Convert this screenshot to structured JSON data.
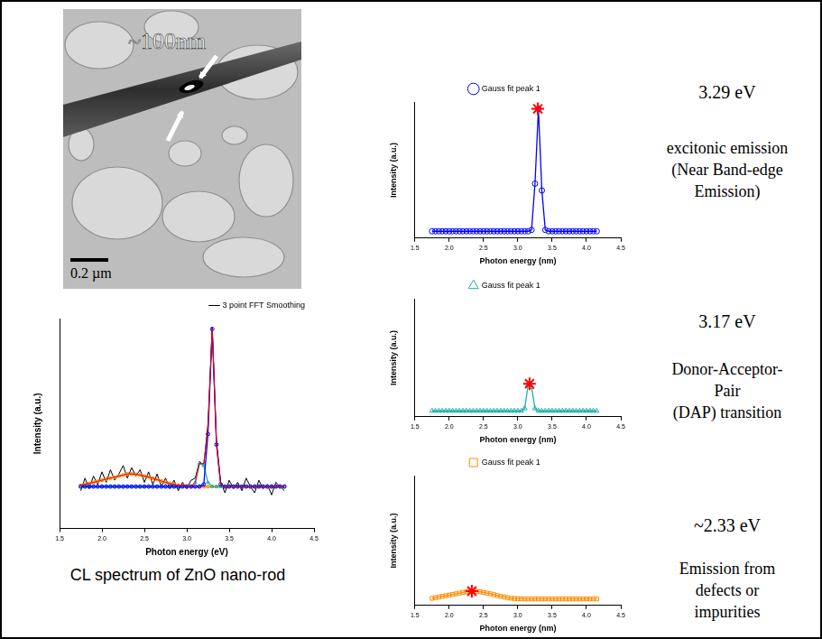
{
  "chart_data": [
    {
      "type": "line",
      "x_label": "Photon energy (eV)",
      "y_label": "Intensity (a.u.)",
      "xlim": [
        1.5,
        4.5
      ],
      "xticks": [
        1.5,
        {
          "value": 2,
          "label": "2.0"
        },
        2.5,
        {
          "value": 3,
          "label": "3.0"
        },
        3.5,
        {
          "value": 4,
          "label": "4.0"
        },
        4.5
      ],
      "ylim": [
        0,
        100
      ],
      "tick_labels": "x",
      "grid": false,
      "legend": "top right",
      "x": [
        1.75,
        1.8,
        1.85,
        1.9,
        1.95,
        2,
        2.05,
        2.1,
        2.15,
        2.2,
        2.25,
        2.3,
        2.35,
        2.4,
        2.45,
        2.5,
        2.55,
        2.6,
        2.65,
        2.7,
        2.75,
        2.8,
        2.85,
        2.9,
        2.95,
        3,
        3.05,
        3.1,
        3.15,
        3.2,
        3.25,
        3.3,
        3.35,
        3.4,
        3.45,
        3.5,
        3.55,
        3.6,
        3.65,
        3.7,
        3.75,
        3.8,
        3.85,
        3.9,
        3.95,
        4,
        4.05,
        4.1,
        4.15
      ],
      "series": [
        {
          "name": "3 point FFT Smoothing",
          "color": "#000000",
          "line_style": "solid",
          "values": [
            18,
            24,
            19,
            25,
            21,
            27,
            22,
            28,
            23,
            26,
            30,
            24,
            29,
            25,
            28,
            22,
            27,
            21,
            26,
            20,
            24,
            19,
            23,
            18,
            22,
            19,
            23,
            24,
            32,
            30,
            50,
            96,
            42,
            22,
            17,
            23,
            19,
            22,
            18,
            24,
            20,
            17,
            23,
            19,
            21,
            16,
            22,
            20,
            18
          ]
        },
        {
          "color": "#ff8c00",
          "marker": "square",
          "line_style": "solid",
          "values": [
            20.5,
            21,
            21.5,
            22,
            22.5,
            23,
            23.5,
            24,
            24.5,
            25,
            25.5,
            26,
            26,
            25.8,
            25.5,
            25,
            24.5,
            24,
            23.3,
            22.6,
            22,
            21.5,
            21,
            20.6,
            20.3,
            20.2,
            20.1,
            20,
            20,
            20,
            20,
            20,
            20,
            20,
            20,
            20,
            20,
            20,
            20,
            20,
            20,
            20,
            20,
            20,
            20,
            20,
            20,
            20,
            20
          ]
        },
        {
          "color": "#20b2aa",
          "marker": "triangle",
          "line_style": "solid",
          "values": [
            20,
            20,
            20,
            20,
            20,
            20,
            20,
            20,
            20,
            20,
            20,
            20,
            20,
            20,
            20,
            20,
            20,
            20,
            20,
            20,
            20,
            20,
            20,
            20,
            20,
            20,
            20,
            22,
            31,
            30,
            22,
            20,
            20,
            20,
            20,
            20,
            20,
            20,
            20,
            20,
            20,
            20,
            20,
            20,
            20,
            20,
            20,
            20,
            20
          ]
        },
        {
          "color": "#0000ff",
          "marker": "circle",
          "line_style": "solid",
          "values": [
            20,
            20,
            20,
            20,
            20,
            20,
            20,
            20,
            20,
            20,
            20,
            20,
            20,
            20,
            20,
            20,
            20,
            20,
            20,
            20,
            20,
            20,
            20,
            20,
            20,
            20,
            20,
            20,
            20,
            21,
            45,
            95,
            40,
            21,
            20,
            20,
            20,
            20,
            20,
            20,
            20,
            20,
            20,
            20,
            20,
            20,
            20,
            20,
            20
          ]
        },
        {
          "color": "#ff0000",
          "line_style": "solid",
          "values": [
            20.5,
            21,
            21.5,
            22,
            22.5,
            23,
            23.5,
            24,
            24.5,
            25,
            25.5,
            26,
            26,
            25.8,
            25.5,
            25,
            24.5,
            24,
            23.3,
            22.6,
            22,
            21.5,
            21,
            20.6,
            20.3,
            20.2,
            20.1,
            22,
            31,
            31,
            47,
            95,
            40,
            21,
            20,
            20,
            20,
            20,
            20,
            20,
            20,
            20,
            20,
            20,
            20,
            20,
            20,
            20,
            20
          ]
        }
      ]
    },
    {
      "type": "line",
      "x_label": "Photon energy (nm)",
      "y_label": "Intensity (a.u.)",
      "xlim": [
        1.5,
        4.5
      ],
      "xticks": [
        1.5,
        {
          "value": 2,
          "label": "2.0"
        },
        2.5,
        {
          "value": 3,
          "label": "3.0"
        },
        3.5,
        {
          "value": 4,
          "label": "4.0"
        },
        4.5
      ],
      "ylim": [
        0,
        100
      ],
      "tick_labels": "x",
      "grid": false,
      "legend": "top",
      "x": [
        1.75,
        1.8,
        1.85,
        1.9,
        1.95,
        2,
        2.05,
        2.1,
        2.15,
        2.2,
        2.25,
        2.3,
        2.35,
        2.4,
        2.45,
        2.5,
        2.55,
        2.6,
        2.65,
        2.7,
        2.75,
        2.8,
        2.85,
        2.9,
        2.95,
        3,
        3.05,
        3.1,
        3.15,
        3.2,
        3.25,
        3.3,
        3.35,
        3.4,
        3.45,
        3.5,
        3.55,
        3.6,
        3.65,
        3.7,
        3.75,
        3.8,
        3.85,
        3.9,
        3.95,
        4,
        4.05,
        4.1,
        4.15
      ],
      "series": [
        {
          "name": "Gauss fit peak 1",
          "color": "#0000ff",
          "marker": "circle",
          "line_style": "solid",
          "values": [
            5,
            5,
            5,
            5,
            5,
            5,
            5,
            5,
            5,
            5,
            5,
            5,
            5,
            5,
            5,
            5,
            5,
            5,
            5,
            5,
            5,
            5,
            5,
            5,
            5,
            5,
            5,
            5,
            5,
            6,
            40,
            95,
            35,
            6,
            5,
            5,
            5,
            5,
            5,
            5,
            5,
            5,
            5,
            5,
            5,
            5,
            5,
            5,
            5
          ]
        },
        {
          "color": "#ff0000",
          "marker": "star",
          "line_style": "none",
          "x": [
            3.29
          ],
          "values": [
            95
          ]
        }
      ]
    },
    {
      "type": "line",
      "x_label": "Photon energy (nm)",
      "y_label": "Intensity (a.u.)",
      "xlim": [
        1.5,
        4.5
      ],
      "xticks": [
        1.5,
        {
          "value": 2,
          "label": "2.0"
        },
        2.5,
        {
          "value": 3,
          "label": "3.0"
        },
        3.5,
        {
          "value": 4,
          "label": "4.0"
        },
        4.5
      ],
      "ylim": [
        0,
        100
      ],
      "tick_labels": "x",
      "grid": false,
      "legend": "top",
      "x": [
        1.75,
        1.8,
        1.85,
        1.9,
        1.95,
        2,
        2.05,
        2.1,
        2.15,
        2.2,
        2.25,
        2.3,
        2.35,
        2.4,
        2.45,
        2.5,
        2.55,
        2.6,
        2.65,
        2.7,
        2.75,
        2.8,
        2.85,
        2.9,
        2.95,
        3,
        3.05,
        3.1,
        3.15,
        3.2,
        3.25,
        3.3,
        3.35,
        3.4,
        3.45,
        3.5,
        3.55,
        3.6,
        3.65,
        3.7,
        3.75,
        3.8,
        3.85,
        3.9,
        3.95,
        4,
        4.05,
        4.1,
        4.15
      ],
      "series": [
        {
          "name": "Gauss fit peak 1",
          "color": "#20b2aa",
          "marker": "triangle",
          "line_style": "solid",
          "values": [
            5,
            5,
            5,
            5,
            5,
            5,
            5,
            5,
            5,
            5,
            5,
            5,
            5,
            5,
            5,
            5,
            5,
            5,
            5,
            5,
            5,
            5,
            5,
            5,
            5,
            5,
            5,
            7,
            27,
            25,
            7,
            5,
            5,
            5,
            5,
            5,
            5,
            5,
            5,
            5,
            5,
            5,
            5,
            5,
            5,
            5,
            5,
            5,
            5
          ]
        },
        {
          "color": "#ff0000",
          "marker": "star",
          "line_style": "none",
          "x": [
            3.17
          ],
          "values": [
            28
          ]
        }
      ]
    },
    {
      "type": "line",
      "x_label": "Photon energy (nm)",
      "y_label": "Intensity (a.u.)",
      "xlim": [
        1.5,
        4.5
      ],
      "xticks": [
        1.5,
        {
          "value": 2,
          "label": "2.0"
        },
        2.5,
        {
          "value": 3,
          "label": "3.0"
        },
        3.5,
        {
          "value": 4,
          "label": "4.0"
        },
        4.5
      ],
      "ylim": [
        0,
        100
      ],
      "tick_labels": "x",
      "grid": false,
      "legend": "top",
      "x": [
        1.75,
        1.8,
        1.85,
        1.9,
        1.95,
        2,
        2.05,
        2.1,
        2.15,
        2.2,
        2.25,
        2.3,
        2.35,
        2.4,
        2.45,
        2.5,
        2.55,
        2.6,
        2.65,
        2.7,
        2.75,
        2.8,
        2.85,
        2.9,
        2.95,
        3,
        3.05,
        3.1,
        3.15,
        3.2,
        3.25,
        3.3,
        3.35,
        3.4,
        3.45,
        3.5,
        3.55,
        3.6,
        3.65,
        3.7,
        3.75,
        3.8,
        3.85,
        3.9,
        3.95,
        4,
        4.05,
        4.1,
        4.15
      ],
      "series": [
        {
          "name": "Gauss fit peak 1",
          "color": "#ff8c00",
          "marker": "square",
          "line_style": "solid",
          "values": [
            5.5,
            6,
            6.5,
            7,
            7.5,
            8,
            8.5,
            9,
            9.5,
            10,
            10.5,
            11,
            11,
            10.8,
            10.5,
            10,
            9.5,
            9,
            8.3,
            7.6,
            7,
            6.5,
            6,
            5.6,
            5.3,
            5.2,
            5.1,
            5,
            5,
            5,
            5,
            5,
            5,
            5,
            5,
            5,
            5,
            5,
            5,
            5,
            5,
            5,
            5,
            5,
            5,
            5,
            5,
            5,
            5
          ]
        },
        {
          "color": "#ff0000",
          "marker": "star",
          "line_style": "none",
          "x": [
            2.33
          ],
          "values": [
            11
          ]
        }
      ]
    }
  ],
  "image": {
    "label": "~100nm",
    "scale_bar": "0.2 µm"
  },
  "caption": "CL spectrum of ZnO nano-rod",
  "notes": [
    {
      "energy": "3.29 eV",
      "lines": [
        "excitonic emission",
        "(Near Band-edge",
        "Emission)"
      ]
    },
    {
      "energy": "3.17 eV",
      "lines": [
        "Donor-Acceptor-",
        "Pair",
        "(DAP) transition"
      ]
    },
    {
      "energy": "~2.33 eV",
      "lines": [
        "Emission from",
        "defects or",
        "impurities"
      ]
    }
  ]
}
